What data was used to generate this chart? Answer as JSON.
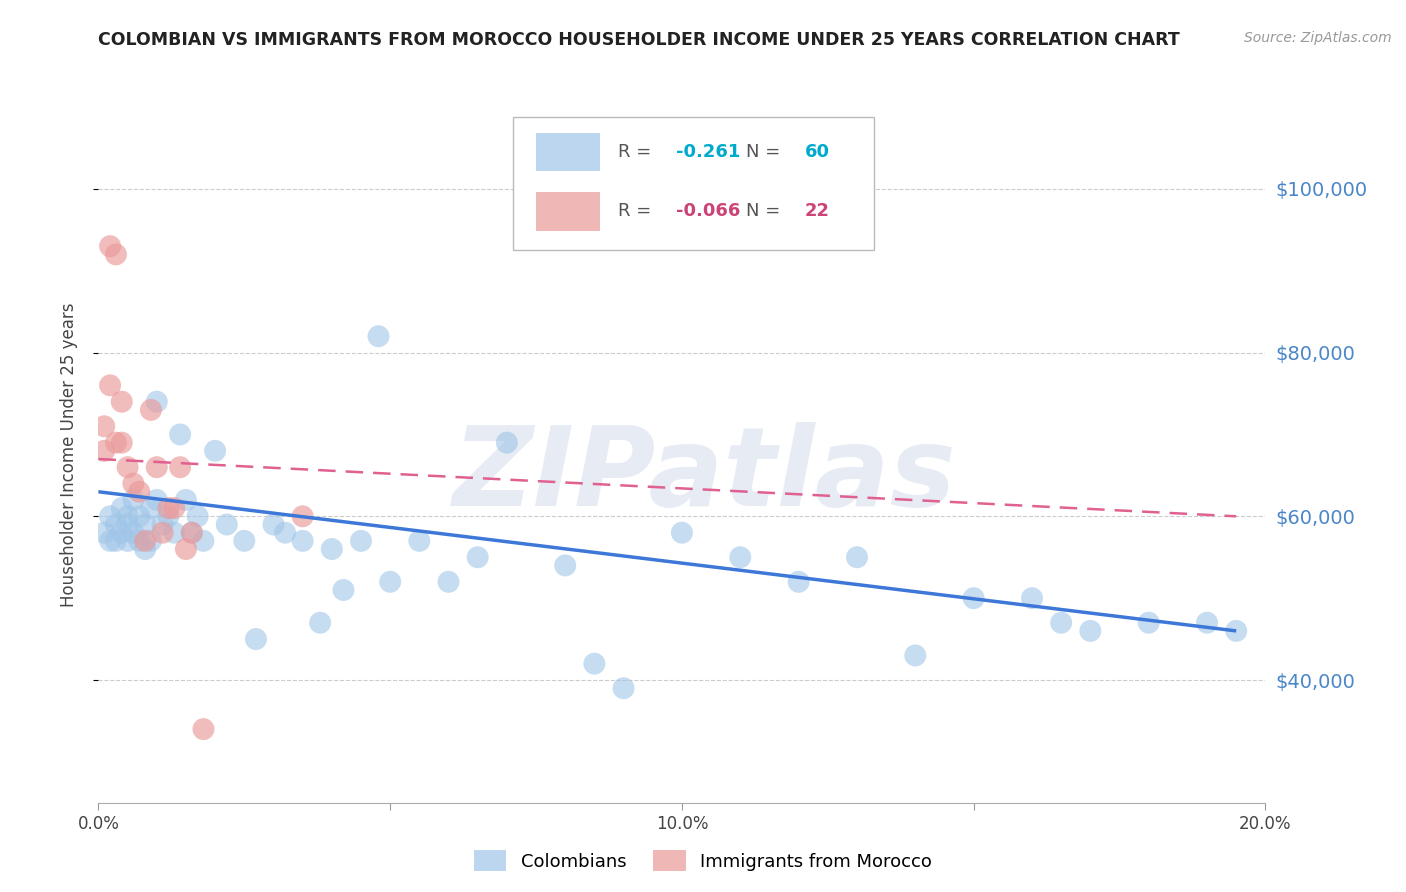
{
  "title": "COLOMBIAN VS IMMIGRANTS FROM MOROCCO HOUSEHOLDER INCOME UNDER 25 YEARS CORRELATION CHART",
  "source": "Source: ZipAtlas.com",
  "ylabel": "Householder Income Under 25 years",
  "watermark": "ZIPatlas",
  "xlim": [
    0.0,
    0.2
  ],
  "ylim": [
    25000,
    110000
  ],
  "yticks": [
    40000,
    60000,
    80000,
    100000
  ],
  "ytick_labels": [
    "$40,000",
    "$60,000",
    "$80,000",
    "$100,000"
  ],
  "xticks": [
    0.0,
    0.05,
    0.1,
    0.15,
    0.2
  ],
  "xtick_labels": [
    "0.0%",
    "",
    "10.0%",
    "",
    "20.0%"
  ],
  "legend_r_blue": "-0.261",
  "legend_n_blue": "60",
  "legend_r_pink": "-0.066",
  "legend_n_pink": "22",
  "blue_color": "#9fc5e8",
  "pink_color": "#ea9999",
  "blue_line_color": "#3d78d8",
  "pink_line_color": "#e06090",
  "colombians_x": [
    0.001,
    0.002,
    0.002,
    0.003,
    0.003,
    0.004,
    0.004,
    0.005,
    0.005,
    0.005,
    0.006,
    0.006,
    0.007,
    0.007,
    0.008,
    0.008,
    0.009,
    0.009,
    0.01,
    0.01,
    0.011,
    0.012,
    0.013,
    0.014,
    0.015,
    0.016,
    0.017,
    0.018,
    0.02,
    0.022,
    0.025,
    0.027,
    0.03,
    0.032,
    0.035,
    0.038,
    0.04,
    0.042,
    0.045,
    0.048,
    0.05,
    0.055,
    0.06,
    0.065,
    0.07,
    0.08,
    0.085,
    0.09,
    0.1,
    0.11,
    0.12,
    0.13,
    0.14,
    0.15,
    0.16,
    0.165,
    0.17,
    0.18,
    0.19,
    0.195
  ],
  "colombians_y": [
    58000,
    57000,
    60000,
    59000,
    57000,
    61000,
    58000,
    60000,
    57000,
    59000,
    62000,
    58000,
    60000,
    57000,
    59000,
    56000,
    61000,
    57000,
    74000,
    62000,
    59000,
    60000,
    58000,
    70000,
    62000,
    58000,
    60000,
    57000,
    68000,
    59000,
    57000,
    45000,
    59000,
    58000,
    57000,
    47000,
    56000,
    51000,
    57000,
    82000,
    52000,
    57000,
    52000,
    55000,
    69000,
    54000,
    42000,
    39000,
    58000,
    55000,
    52000,
    55000,
    43000,
    50000,
    50000,
    47000,
    46000,
    47000,
    47000,
    46000
  ],
  "morocco_x": [
    0.001,
    0.001,
    0.002,
    0.002,
    0.003,
    0.003,
    0.004,
    0.004,
    0.005,
    0.006,
    0.007,
    0.008,
    0.009,
    0.01,
    0.011,
    0.012,
    0.013,
    0.014,
    0.015,
    0.016,
    0.018,
    0.035
  ],
  "morocco_y": [
    71000,
    68000,
    93000,
    76000,
    92000,
    69000,
    74000,
    69000,
    66000,
    64000,
    63000,
    57000,
    73000,
    66000,
    58000,
    61000,
    61000,
    66000,
    56000,
    58000,
    34000,
    60000
  ],
  "blue_trend_x": [
    0.0,
    0.195
  ],
  "blue_trend_y": [
    63000,
    46000
  ],
  "pink_trend_x": [
    0.0,
    0.195
  ],
  "pink_trend_y": [
    67000,
    60000
  ],
  "background_color": "#ffffff",
  "title_color": "#222222",
  "source_color": "#999999",
  "right_axis_color": "#4a86c8",
  "grid_color": "#cccccc",
  "grid_style": "--"
}
